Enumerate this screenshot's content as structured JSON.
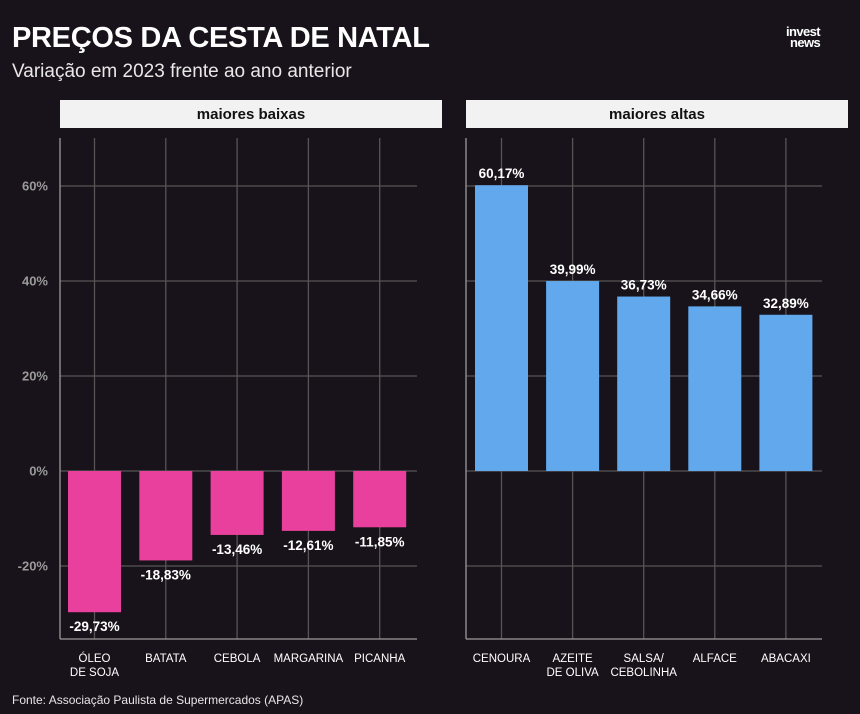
{
  "header": {
    "title": "PREÇOS DA CESTA DE NATAL",
    "subtitle": "Variação em 2023 frente ao ano anterior",
    "logo_line1": "invest",
    "logo_line2": "news"
  },
  "footer": {
    "source": "Fonte: Associação Paulista de Supermercados (APAS)"
  },
  "colors": {
    "background": "#18131a",
    "negative_bar": "#e8409c",
    "positive_bar": "#62a8ec",
    "grid": "#555555",
    "panel_header": "#f2f2f2"
  },
  "chart_data": [
    {
      "type": "bar",
      "title": "maiores baixas",
      "categories": [
        [
          "ÓLEO",
          "DE SOJA"
        ],
        [
          "BATATA"
        ],
        [
          "CEBOLA"
        ],
        [
          "MARGARINA"
        ],
        [
          "PICANHA"
        ]
      ],
      "values": [
        -29.73,
        -18.83,
        -13.46,
        -12.61,
        -11.85
      ],
      "labels": [
        "-29,73%",
        "-18,83%",
        "-13,46%",
        "-12,61%",
        "-11,85%"
      ],
      "ylim": [
        -35,
        70
      ],
      "yticks": [
        -20,
        0,
        20,
        40,
        60
      ],
      "ytick_labels": [
        "-20%",
        "0%",
        "20%",
        "40%",
        "60%"
      ],
      "grid": true,
      "color": "#e8409c"
    },
    {
      "type": "bar",
      "title": "maiores altas",
      "categories": [
        [
          "CENOURA"
        ],
        [
          "AZEITE",
          "DE OLIVA"
        ],
        [
          "SALSA/",
          "CEBOLINHA"
        ],
        [
          "ALFACE"
        ],
        [
          "ABACAXI"
        ]
      ],
      "values": [
        60.17,
        39.99,
        36.73,
        34.66,
        32.89
      ],
      "labels": [
        "60,17%",
        "39,99%",
        "36,73%",
        "34,66%",
        "32,89%"
      ],
      "ylim": [
        -35,
        70
      ],
      "yticks": [
        -20,
        0,
        20,
        40,
        60
      ],
      "grid": true,
      "color": "#62a8ec"
    }
  ]
}
